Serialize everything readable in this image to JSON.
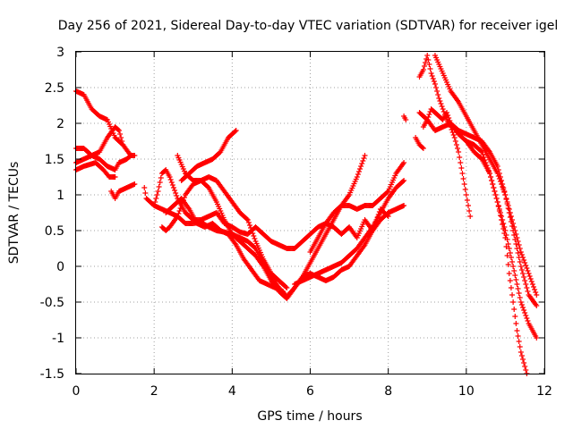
{
  "chart_data": {
    "type": "scatter",
    "title": "Day 256 of 2021, Sidereal Day-to-day VTEC variation (SDTVAR) for receiver igel",
    "xlabel": "GPS time / hours",
    "ylabel": "SDTVAR / TECUs",
    "xlim": [
      0,
      12
    ],
    "ylim": [
      -1.5,
      3
    ],
    "xticks": [
      "0",
      "2",
      "4",
      "6",
      "8",
      "10",
      "12"
    ],
    "yticks": [
      "-1.5",
      "-1",
      "-0.5",
      "0",
      "0.5",
      "1",
      "1.5",
      "2",
      "2.5",
      "3"
    ],
    "grid": true,
    "marker": "plus",
    "color": "#ff0000",
    "series": [
      {
        "values": [
          [
            0.0,
            2.45
          ],
          [
            0.2,
            2.4
          ],
          [
            0.4,
            2.2
          ],
          [
            0.6,
            2.1
          ],
          [
            0.8,
            2.05
          ],
          [
            1.0,
            1.8
          ],
          [
            1.2,
            1.7
          ],
          [
            1.4,
            1.55
          ],
          [
            1.5,
            1.55
          ]
        ]
      },
      {
        "values": [
          [
            0.0,
            1.65
          ],
          [
            0.2,
            1.65
          ],
          [
            0.4,
            1.55
          ],
          [
            0.6,
            1.5
          ],
          [
            0.8,
            1.4
          ],
          [
            1.0,
            1.35
          ],
          [
            1.1,
            1.45
          ],
          [
            1.3,
            1.5
          ],
          [
            1.4,
            1.55
          ]
        ]
      },
      {
        "values": [
          [
            0.0,
            1.45
          ],
          [
            0.2,
            1.5
          ],
          [
            0.4,
            1.55
          ],
          [
            0.6,
            1.6
          ],
          [
            0.8,
            1.8
          ],
          [
            1.0,
            1.95
          ],
          [
            1.1,
            1.9
          ],
          [
            1.2,
            1.7
          ]
        ]
      },
      {
        "values": [
          [
            0.0,
            1.35
          ],
          [
            0.2,
            1.4
          ],
          [
            0.5,
            1.45
          ],
          [
            0.7,
            1.35
          ],
          [
            0.85,
            1.25
          ],
          [
            1.0,
            1.25
          ]
        ]
      },
      {
        "values": [
          [
            0.9,
            1.05
          ],
          [
            1.0,
            0.95
          ],
          [
            1.1,
            1.05
          ],
          [
            1.3,
            1.1
          ],
          [
            1.5,
            1.15
          ]
        ]
      },
      {
        "values": [
          [
            1.75,
            1.1
          ],
          [
            1.8,
            0.95
          ],
          [
            1.9,
            0.9
          ],
          [
            2.0,
            0.85
          ],
          [
            2.2,
            0.8
          ],
          [
            2.4,
            0.75
          ],
          [
            2.6,
            0.7
          ],
          [
            2.8,
            0.6
          ],
          [
            3.0,
            0.6
          ],
          [
            3.2,
            0.62
          ],
          [
            3.4,
            0.55
          ],
          [
            3.6,
            0.5
          ],
          [
            3.8,
            0.48
          ],
          [
            4.0,
            0.45
          ],
          [
            4.2,
            0.4
          ],
          [
            4.4,
            0.35
          ],
          [
            4.6,
            0.25
          ],
          [
            4.8,
            0.05
          ],
          [
            5.0,
            -0.15
          ],
          [
            5.2,
            -0.3
          ],
          [
            5.4,
            -0.42
          ],
          [
            5.6,
            -0.3
          ],
          [
            5.8,
            -0.15
          ],
          [
            6.0,
            -0.1
          ],
          [
            6.2,
            -0.15
          ],
          [
            6.4,
            -0.2
          ],
          [
            6.6,
            -0.15
          ],
          [
            6.8,
            -0.05
          ],
          [
            7.0,
            0.0
          ],
          [
            7.2,
            0.15
          ],
          [
            7.4,
            0.3
          ],
          [
            7.6,
            0.5
          ],
          [
            7.8,
            0.65
          ],
          [
            8.0,
            0.75
          ],
          [
            8.2,
            0.8
          ],
          [
            8.4,
            0.85
          ]
        ]
      },
      {
        "values": [
          [
            2.0,
            0.85
          ],
          [
            2.1,
            1.05
          ],
          [
            2.2,
            1.3
          ],
          [
            2.3,
            1.35
          ],
          [
            2.4,
            1.25
          ],
          [
            2.6,
            0.95
          ],
          [
            2.8,
            0.75
          ],
          [
            3.0,
            0.65
          ],
          [
            3.2,
            0.65
          ],
          [
            3.4,
            0.7
          ],
          [
            3.6,
            0.75
          ],
          [
            3.8,
            0.6
          ],
          [
            4.0,
            0.55
          ],
          [
            4.2,
            0.48
          ],
          [
            4.4,
            0.45
          ],
          [
            4.6,
            0.55
          ],
          [
            4.8,
            0.45
          ],
          [
            5.0,
            0.35
          ],
          [
            5.2,
            0.3
          ],
          [
            5.4,
            0.25
          ],
          [
            5.6,
            0.25
          ],
          [
            5.8,
            0.35
          ],
          [
            6.0,
            0.45
          ],
          [
            6.2,
            0.55
          ],
          [
            6.4,
            0.6
          ],
          [
            6.6,
            0.75
          ],
          [
            6.8,
            0.85
          ],
          [
            7.0,
            0.85
          ],
          [
            7.2,
            0.8
          ],
          [
            7.4,
            0.85
          ],
          [
            7.6,
            0.85
          ],
          [
            7.8,
            0.95
          ],
          [
            8.0,
            1.05
          ],
          [
            8.2,
            1.3
          ],
          [
            8.4,
            1.45
          ]
        ]
      },
      {
        "values": [
          [
            2.2,
            0.55
          ],
          [
            2.3,
            0.5
          ],
          [
            2.4,
            0.55
          ],
          [
            2.6,
            0.7
          ],
          [
            2.8,
            1.0
          ],
          [
            3.0,
            1.15
          ],
          [
            3.2,
            1.2
          ],
          [
            3.4,
            1.1
          ],
          [
            3.6,
            0.9
          ],
          [
            3.8,
            0.65
          ],
          [
            4.0,
            0.45
          ],
          [
            4.2,
            0.35
          ],
          [
            4.4,
            0.25
          ],
          [
            4.6,
            0.15
          ],
          [
            4.8,
            0.0
          ],
          [
            5.0,
            -0.2
          ],
          [
            5.2,
            -0.35
          ],
          [
            5.4,
            -0.45
          ],
          [
            5.6,
            -0.3
          ],
          [
            5.8,
            -0.15
          ],
          [
            6.0,
            0.05
          ],
          [
            6.2,
            0.25
          ],
          [
            6.4,
            0.45
          ],
          [
            6.6,
            0.65
          ],
          [
            6.8,
            0.85
          ],
          [
            7.0,
            1.0
          ],
          [
            7.2,
            1.25
          ],
          [
            7.4,
            1.55
          ]
        ]
      },
      {
        "values": [
          [
            2.6,
            1.55
          ],
          [
            2.8,
            1.3
          ],
          [
            3.0,
            1.2
          ],
          [
            3.2,
            1.2
          ],
          [
            3.4,
            1.25
          ],
          [
            3.6,
            1.2
          ],
          [
            3.8,
            1.05
          ],
          [
            4.0,
            0.9
          ],
          [
            4.2,
            0.75
          ],
          [
            4.4,
            0.65
          ],
          [
            4.6,
            0.35
          ],
          [
            4.8,
            0.1
          ],
          [
            5.0,
            -0.1
          ],
          [
            5.2,
            -0.2
          ],
          [
            5.4,
            -0.3
          ]
        ]
      },
      {
        "values": [
          [
            2.7,
            1.2
          ],
          [
            2.9,
            1.3
          ],
          [
            3.1,
            1.4
          ],
          [
            3.3,
            1.45
          ],
          [
            3.5,
            1.5
          ],
          [
            3.7,
            1.6
          ],
          [
            3.9,
            1.8
          ],
          [
            4.1,
            1.9
          ]
        ]
      },
      {
        "values": [
          [
            2.3,
            0.75
          ],
          [
            2.5,
            0.85
          ],
          [
            2.7,
            0.95
          ],
          [
            2.9,
            0.8
          ],
          [
            3.1,
            0.6
          ],
          [
            3.3,
            0.55
          ],
          [
            3.5,
            0.6
          ],
          [
            3.7,
            0.5
          ],
          [
            3.9,
            0.45
          ],
          [
            4.1,
            0.3
          ],
          [
            4.3,
            0.1
          ],
          [
            4.5,
            -0.05
          ],
          [
            4.7,
            -0.2
          ],
          [
            4.9,
            -0.25
          ],
          [
            5.1,
            -0.3
          ],
          [
            5.3,
            -0.35
          ]
        ]
      },
      {
        "values": [
          [
            5.6,
            -0.25
          ],
          [
            5.8,
            -0.2
          ],
          [
            6.0,
            -0.15
          ],
          [
            6.2,
            -0.1
          ],
          [
            6.4,
            -0.05
          ],
          [
            6.6,
            0.0
          ],
          [
            6.8,
            0.05
          ],
          [
            7.0,
            0.15
          ],
          [
            7.2,
            0.25
          ],
          [
            7.4,
            0.4
          ],
          [
            7.6,
            0.55
          ],
          [
            7.8,
            0.75
          ],
          [
            8.0,
            0.95
          ],
          [
            8.2,
            1.1
          ],
          [
            8.4,
            1.2
          ]
        ]
      },
      {
        "values": [
          [
            6.0,
            0.2
          ],
          [
            6.2,
            0.4
          ],
          [
            6.4,
            0.6
          ],
          [
            6.6,
            0.55
          ],
          [
            6.8,
            0.45
          ],
          [
            7.0,
            0.55
          ],
          [
            7.2,
            0.4
          ],
          [
            7.4,
            0.65
          ],
          [
            7.6,
            0.5
          ],
          [
            7.8,
            0.8
          ],
          [
            8.0,
            0.7
          ]
        ]
      },
      {
        "values": [
          [
            8.4,
            2.1
          ],
          [
            8.45,
            2.05
          ]
        ]
      },
      {
        "values": [
          [
            8.8,
            2.65
          ],
          [
            8.9,
            2.75
          ],
          [
            9.0,
            2.95
          ],
          [
            9.1,
            2.7
          ],
          [
            9.2,
            2.55
          ],
          [
            9.3,
            2.35
          ],
          [
            9.4,
            2.2
          ],
          [
            9.5,
            2.05
          ],
          [
            9.6,
            1.95
          ],
          [
            9.7,
            1.8
          ],
          [
            9.8,
            1.6
          ],
          [
            9.9,
            1.3
          ],
          [
            10.0,
            1.0
          ],
          [
            10.1,
            0.7
          ]
        ]
      },
      {
        "values": [
          [
            8.8,
            2.15
          ],
          [
            8.9,
            2.1
          ],
          [
            9.0,
            2.05
          ],
          [
            9.1,
            2.2
          ],
          [
            9.2,
            2.15
          ],
          [
            9.3,
            2.1
          ],
          [
            9.4,
            2.05
          ],
          [
            9.5,
            2.15
          ],
          [
            9.6,
            2.0
          ],
          [
            9.8,
            1.9
          ],
          [
            10.0,
            1.85
          ],
          [
            10.2,
            1.8
          ],
          [
            10.4,
            1.75
          ],
          [
            10.6,
            1.6
          ],
          [
            10.8,
            1.4
          ],
          [
            11.0,
            1.0
          ],
          [
            11.2,
            0.5
          ],
          [
            11.4,
            0.0
          ],
          [
            11.6,
            -0.4
          ],
          [
            11.8,
            -0.55
          ]
        ]
      },
      {
        "values": [
          [
            8.9,
            1.95
          ],
          [
            9.0,
            2.05
          ],
          [
            9.2,
            1.9
          ],
          [
            9.4,
            1.95
          ],
          [
            9.6,
            2.0
          ],
          [
            9.8,
            1.85
          ],
          [
            10.0,
            1.75
          ],
          [
            10.2,
            1.7
          ],
          [
            10.4,
            1.6
          ],
          [
            10.6,
            1.3
          ],
          [
            10.8,
            0.9
          ],
          [
            11.0,
            0.5
          ],
          [
            11.2,
            0.0
          ],
          [
            11.4,
            -0.5
          ],
          [
            11.6,
            -0.8
          ],
          [
            11.8,
            -1.0
          ]
        ]
      },
      {
        "values": [
          [
            9.2,
            2.95
          ],
          [
            9.4,
            2.7
          ],
          [
            9.6,
            2.45
          ],
          [
            9.8,
            2.3
          ],
          [
            10.0,
            2.1
          ],
          [
            10.2,
            1.9
          ],
          [
            10.4,
            1.7
          ],
          [
            10.6,
            1.5
          ],
          [
            10.8,
            1.3
          ],
          [
            11.0,
            1.0
          ],
          [
            11.2,
            0.6
          ],
          [
            11.4,
            0.2
          ],
          [
            11.6,
            -0.1
          ],
          [
            11.8,
            -0.4
          ]
        ]
      },
      {
        "values": [
          [
            10.0,
            1.75
          ],
          [
            10.2,
            1.6
          ],
          [
            10.4,
            1.5
          ],
          [
            10.6,
            1.3
          ],
          [
            10.8,
            0.9
          ],
          [
            11.0,
            0.4
          ],
          [
            11.1,
            -0.1
          ],
          [
            11.2,
            -0.5
          ],
          [
            11.3,
            -0.9
          ],
          [
            11.4,
            -1.2
          ],
          [
            11.5,
            -1.4
          ],
          [
            11.55,
            -1.5
          ]
        ]
      },
      {
        "values": [
          [
            8.7,
            1.8
          ],
          [
            8.8,
            1.7
          ],
          [
            8.9,
            1.65
          ]
        ]
      }
    ]
  }
}
